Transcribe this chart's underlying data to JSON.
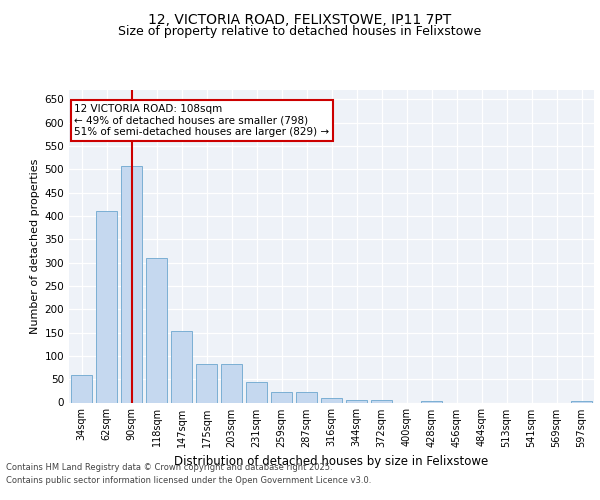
{
  "title_line1": "12, VICTORIA ROAD, FELIXSTOWE, IP11 7PT",
  "title_line2": "Size of property relative to detached houses in Felixstowe",
  "xlabel": "Distribution of detached houses by size in Felixstowe",
  "ylabel": "Number of detached properties",
  "categories": [
    "34sqm",
    "62sqm",
    "90sqm",
    "118sqm",
    "147sqm",
    "175sqm",
    "203sqm",
    "231sqm",
    "259sqm",
    "287sqm",
    "316sqm",
    "344sqm",
    "372sqm",
    "400sqm",
    "428sqm",
    "456sqm",
    "484sqm",
    "513sqm",
    "541sqm",
    "569sqm",
    "597sqm"
  ],
  "values": [
    60,
    410,
    507,
    310,
    153,
    83,
    83,
    45,
    22,
    22,
    9,
    6,
    6,
    0,
    4,
    0,
    0,
    0,
    0,
    0,
    4
  ],
  "bar_color": "#c5d8ef",
  "bar_edge_color": "#7bafd4",
  "red_line_x": 2.0,
  "annotation_text": "12 VICTORIA ROAD: 108sqm\n← 49% of detached houses are smaller (798)\n51% of semi-detached houses are larger (829) →",
  "annotation_box_color": "#ffffff",
  "annotation_box_edge": "#cc0000",
  "ylim": [
    0,
    670
  ],
  "yticks": [
    0,
    50,
    100,
    150,
    200,
    250,
    300,
    350,
    400,
    450,
    500,
    550,
    600,
    650
  ],
  "footer_line1": "Contains HM Land Registry data © Crown copyright and database right 2025.",
  "footer_line2": "Contains public sector information licensed under the Open Government Licence v3.0.",
  "bg_color": "#eef2f8",
  "fig_bg_color": "#ffffff",
  "title1_fontsize": 10,
  "title2_fontsize": 9,
  "ylabel_fontsize": 8,
  "xlabel_fontsize": 8.5,
  "tick_fontsize": 7,
  "annot_fontsize": 7.5,
  "footer_fontsize": 6
}
